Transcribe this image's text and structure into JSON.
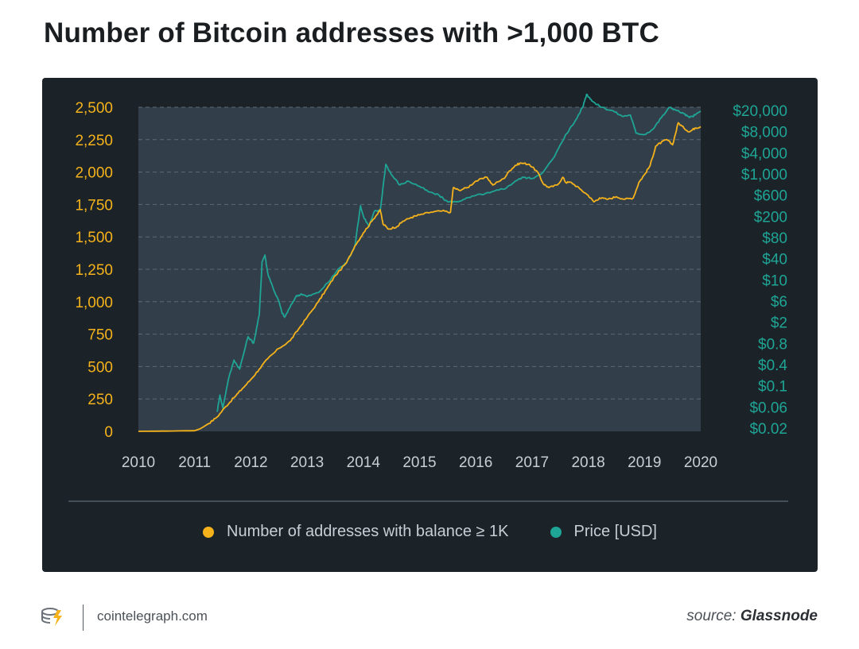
{
  "title": "Number of Bitcoin addresses with >1,000 BTC",
  "footer": {
    "site": "cointelegraph.com",
    "source_label": "source:",
    "source_name": "Glassnode"
  },
  "colors": {
    "addresses": "#f5b21b",
    "price": "#1fa595",
    "panel": "#1b2329",
    "plot_bg": "#323f4a",
    "grid": "#5a6a76",
    "axis_text": "#c7ced4"
  },
  "chart_data": {
    "type": "line",
    "title": "Number of Bitcoin addresses with >1,000 BTC",
    "x_ticks": [
      "2010",
      "2011",
      "2012",
      "2013",
      "2014",
      "2015",
      "2016",
      "2017",
      "2018",
      "2019",
      "2020"
    ],
    "y_left": {
      "ticks": [
        "0",
        "250",
        "500",
        "750",
        "1,000",
        "1,250",
        "1,500",
        "1,750",
        "2,000",
        "2,250",
        "2,500"
      ],
      "range": [
        0,
        2500
      ]
    },
    "y_right": {
      "ticks": [
        "$0.02",
        "$0.06",
        "$0.1",
        "$0.4",
        "$0.8",
        "$2",
        "$6",
        "$10",
        "$40",
        "$80",
        "$200",
        "$600",
        "$1,000",
        "$4,000",
        "$8,000",
        "$20,000"
      ],
      "scale": "log"
    },
    "grid": true,
    "legend_position": "bottom",
    "series": [
      {
        "name": "Number of addresses with balance ≥ 1K",
        "axis": "left",
        "points": [
          [
            2010.0,
            0
          ],
          [
            2010.5,
            2
          ],
          [
            2011.0,
            5
          ],
          [
            2011.1,
            20
          ],
          [
            2011.25,
            60
          ],
          [
            2011.4,
            110
          ],
          [
            2011.55,
            190
          ],
          [
            2011.7,
            260
          ],
          [
            2011.85,
            330
          ],
          [
            2012.0,
            400
          ],
          [
            2012.15,
            480
          ],
          [
            2012.3,
            560
          ],
          [
            2012.5,
            640
          ],
          [
            2012.7,
            700
          ],
          [
            2012.85,
            790
          ],
          [
            2013.0,
            880
          ],
          [
            2013.2,
            1000
          ],
          [
            2013.35,
            1100
          ],
          [
            2013.5,
            1200
          ],
          [
            2013.7,
            1300
          ],
          [
            2013.85,
            1430
          ],
          [
            2014.0,
            1530
          ],
          [
            2014.15,
            1620
          ],
          [
            2014.3,
            1710
          ],
          [
            2014.35,
            1600
          ],
          [
            2014.45,
            1560
          ],
          [
            2014.6,
            1580
          ],
          [
            2014.7,
            1620
          ],
          [
            2014.85,
            1650
          ],
          [
            2015.0,
            1670
          ],
          [
            2015.2,
            1690
          ],
          [
            2015.4,
            1700
          ],
          [
            2015.55,
            1690
          ],
          [
            2015.6,
            1880
          ],
          [
            2015.7,
            1860
          ],
          [
            2015.85,
            1880
          ],
          [
            2016.0,
            1930
          ],
          [
            2016.2,
            1960
          ],
          [
            2016.3,
            1900
          ],
          [
            2016.5,
            1950
          ],
          [
            2016.6,
            2010
          ],
          [
            2016.7,
            2050
          ],
          [
            2016.8,
            2070
          ],
          [
            2016.95,
            2060
          ],
          [
            2017.1,
            2000
          ],
          [
            2017.2,
            1910
          ],
          [
            2017.3,
            1880
          ],
          [
            2017.45,
            1900
          ],
          [
            2017.55,
            1960
          ],
          [
            2017.6,
            1920
          ],
          [
            2017.7,
            1920
          ],
          [
            2017.85,
            1870
          ],
          [
            2018.0,
            1820
          ],
          [
            2018.1,
            1770
          ],
          [
            2018.2,
            1800
          ],
          [
            2018.35,
            1790
          ],
          [
            2018.5,
            1810
          ],
          [
            2018.65,
            1790
          ],
          [
            2018.8,
            1800
          ],
          [
            2018.9,
            1920
          ],
          [
            2019.0,
            1980
          ],
          [
            2019.1,
            2050
          ],
          [
            2019.2,
            2200
          ],
          [
            2019.3,
            2230
          ],
          [
            2019.4,
            2250
          ],
          [
            2019.5,
            2210
          ],
          [
            2019.6,
            2380
          ],
          [
            2019.7,
            2340
          ],
          [
            2019.8,
            2310
          ],
          [
            2019.9,
            2340
          ],
          [
            2020.0,
            2350
          ]
        ]
      },
      {
        "name": "Price [USD]",
        "axis": "right",
        "points": [
          [
            2011.4,
            150
          ],
          [
            2011.45,
            280
          ],
          [
            2011.5,
            180
          ],
          [
            2011.6,
            400
          ],
          [
            2011.7,
            550
          ],
          [
            2011.8,
            480
          ],
          [
            2011.95,
            730
          ],
          [
            2012.05,
            680
          ],
          [
            2012.15,
            900
          ],
          [
            2012.2,
            1310
          ],
          [
            2012.25,
            1360
          ],
          [
            2012.3,
            1220
          ],
          [
            2012.4,
            1100
          ],
          [
            2012.5,
            1000
          ],
          [
            2012.55,
            920
          ],
          [
            2012.6,
            880
          ],
          [
            2012.7,
            960
          ],
          [
            2012.8,
            1040
          ],
          [
            2012.9,
            1060
          ],
          [
            2013.0,
            1040
          ],
          [
            2013.2,
            1070
          ],
          [
            2013.4,
            1160
          ],
          [
            2013.55,
            1250
          ],
          [
            2013.7,
            1300
          ],
          [
            2013.85,
            1430
          ],
          [
            2013.95,
            1740
          ],
          [
            2014.0,
            1660
          ],
          [
            2014.1,
            1580
          ],
          [
            2014.2,
            1700
          ],
          [
            2014.3,
            1700
          ],
          [
            2014.4,
            2060
          ],
          [
            2014.5,
            1980
          ],
          [
            2014.65,
            1900
          ],
          [
            2014.8,
            1930
          ],
          [
            2015.0,
            1890
          ],
          [
            2015.15,
            1850
          ],
          [
            2015.35,
            1820
          ],
          [
            2015.5,
            1770
          ],
          [
            2015.65,
            1770
          ],
          [
            2015.8,
            1790
          ],
          [
            2016.0,
            1820
          ],
          [
            2016.25,
            1840
          ],
          [
            2016.4,
            1860
          ],
          [
            2016.55,
            1880
          ],
          [
            2016.7,
            1930
          ],
          [
            2016.85,
            1960
          ],
          [
            2017.0,
            1950
          ],
          [
            2017.2,
            2000
          ],
          [
            2017.4,
            2120
          ],
          [
            2017.6,
            2290
          ],
          [
            2017.75,
            2380
          ],
          [
            2017.9,
            2500
          ],
          [
            2017.97,
            2600
          ],
          [
            2018.05,
            2560
          ],
          [
            2018.15,
            2520
          ],
          [
            2018.3,
            2490
          ],
          [
            2018.45,
            2470
          ],
          [
            2018.6,
            2430
          ],
          [
            2018.75,
            2440
          ],
          [
            2018.85,
            2300
          ],
          [
            2019.0,
            2290
          ],
          [
            2019.15,
            2330
          ],
          [
            2019.3,
            2420
          ],
          [
            2019.45,
            2500
          ],
          [
            2019.55,
            2480
          ],
          [
            2019.7,
            2450
          ],
          [
            2019.8,
            2420
          ],
          [
            2019.9,
            2440
          ],
          [
            2020.0,
            2470
          ]
        ]
      }
    ]
  }
}
